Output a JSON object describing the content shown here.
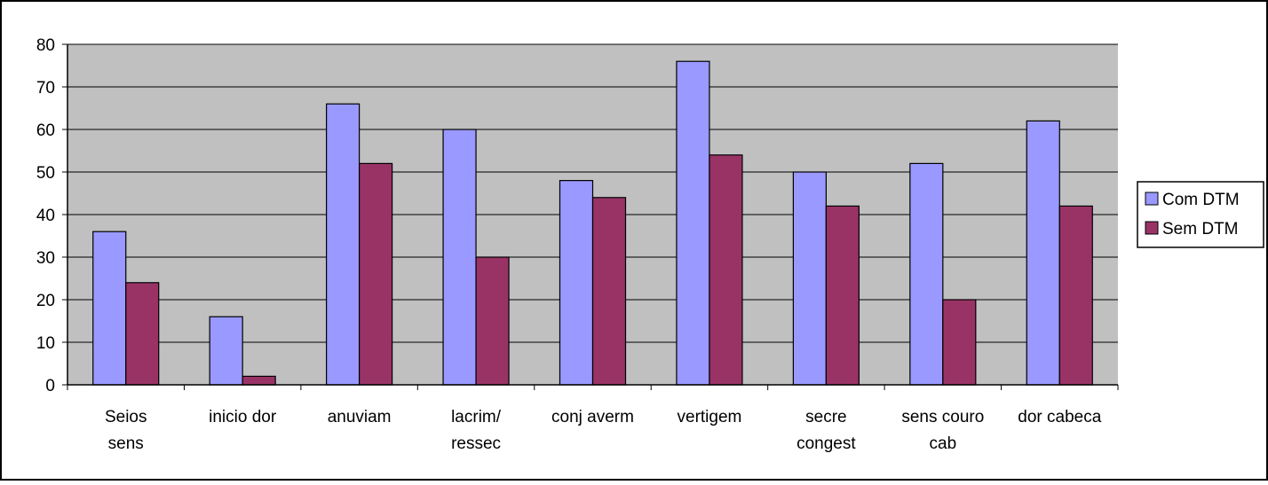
{
  "chart_data": {
    "type": "bar",
    "categories": [
      [
        "Seios",
        "sens"
      ],
      [
        "inicio dor"
      ],
      [
        "anuviam"
      ],
      [
        "lacrim/",
        "ressec"
      ],
      [
        "conj averm"
      ],
      [
        "vertigem"
      ],
      [
        "secre",
        "congest"
      ],
      [
        "sens couro",
        "cab"
      ],
      [
        "dor cabeca"
      ]
    ],
    "series": [
      {
        "name": "Com DTM",
        "color": "#9999ff",
        "values": [
          36,
          16,
          66,
          60,
          48,
          76,
          50,
          52,
          62
        ]
      },
      {
        "name": "Sem DTM",
        "color": "#993366",
        "values": [
          24,
          2,
          52,
          30,
          44,
          54,
          42,
          20,
          42
        ]
      }
    ],
    "ylim": [
      0,
      80
    ],
    "yticks": [
      0,
      10,
      20,
      30,
      40,
      50,
      60,
      70,
      80
    ],
    "grid": true,
    "plot_background": "#c0c0c0",
    "legend": "right",
    "title": "",
    "xlabel": "",
    "ylabel": ""
  }
}
